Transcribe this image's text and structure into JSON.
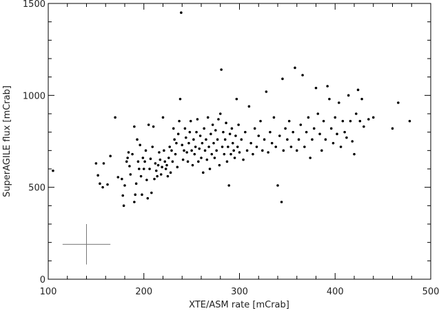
{
  "chart_data": {
    "type": "scatter",
    "title": "",
    "xlabel": "XTE/ASM rate [mCrab]",
    "ylabel": "SuperAGILE flux [mCrab]",
    "xlim": [
      100,
      500
    ],
    "ylim": [
      0,
      1500
    ],
    "xticks": [
      100,
      200,
      300,
      400,
      500
    ],
    "yticks": [
      0,
      500,
      1000,
      1500
    ],
    "grid": false,
    "legend": "none",
    "error_bar_example": {
      "x": 140,
      "y": 190,
      "x_err": 25,
      "y_err": 110
    },
    "series": [
      {
        "points": [
          [
            105,
            590
          ],
          [
            150,
            630
          ],
          [
            152,
            565
          ],
          [
            154,
            520
          ],
          [
            157,
            500
          ],
          [
            158,
            630
          ],
          [
            162,
            515
          ],
          [
            165,
            670
          ],
          [
            170,
            880
          ],
          [
            173,
            555
          ],
          [
            177,
            545
          ],
          [
            178,
            455
          ],
          [
            179,
            400
          ],
          [
            180,
            510
          ],
          [
            182,
            640
          ],
          [
            183,
            660
          ],
          [
            184,
            690
          ],
          [
            185,
            615
          ],
          [
            186,
            570
          ],
          [
            188,
            680
          ],
          [
            190,
            420
          ],
          [
            190,
            830
          ],
          [
            191,
            460
          ],
          [
            192,
            520
          ],
          [
            193,
            760
          ],
          [
            194,
            640
          ],
          [
            195,
            600
          ],
          [
            196,
            730
          ],
          [
            197,
            560
          ],
          [
            198,
            460
          ],
          [
            199,
            660
          ],
          [
            200,
            600
          ],
          [
            201,
            640
          ],
          [
            202,
            700
          ],
          [
            203,
            540
          ],
          [
            204,
            440
          ],
          [
            205,
            840
          ],
          [
            206,
            600
          ],
          [
            207,
            655
          ],
          [
            208,
            470
          ],
          [
            209,
            720
          ],
          [
            210,
            830
          ],
          [
            211,
            545
          ],
          [
            212,
            630
          ],
          [
            213,
            590
          ],
          [
            214,
            560
          ],
          [
            215,
            620
          ],
          [
            216,
            690
          ],
          [
            217,
            650
          ],
          [
            218,
            570
          ],
          [
            219,
            610
          ],
          [
            220,
            880
          ],
          [
            221,
            700
          ],
          [
            222,
            640
          ],
          [
            223,
            600
          ],
          [
            224,
            620
          ],
          [
            225,
            560
          ],
          [
            226,
            660
          ],
          [
            227,
            720
          ],
          [
            228,
            580
          ],
          [
            229,
            700
          ],
          [
            230,
            640
          ],
          [
            231,
            820
          ],
          [
            232,
            760
          ],
          [
            233,
            680
          ],
          [
            234,
            740
          ],
          [
            235,
            610
          ],
          [
            236,
            790
          ],
          [
            237,
            860
          ],
          [
            238,
            980
          ],
          [
            239,
            1450
          ],
          [
            240,
            730
          ],
          [
            241,
            650
          ],
          [
            242,
            700
          ],
          [
            243,
            820
          ],
          [
            244,
            770
          ],
          [
            245,
            690
          ],
          [
            246,
            640
          ],
          [
            247,
            740
          ],
          [
            248,
            800
          ],
          [
            249,
            860
          ],
          [
            250,
            700
          ],
          [
            251,
            620
          ],
          [
            252,
            760
          ],
          [
            253,
            680
          ],
          [
            254,
            720
          ],
          [
            255,
            800
          ],
          [
            256,
            870
          ],
          [
            257,
            640
          ],
          [
            258,
            710
          ],
          [
            259,
            780
          ],
          [
            260,
            660
          ],
          [
            261,
            740
          ],
          [
            262,
            580
          ],
          [
            263,
            820
          ],
          [
            264,
            700
          ],
          [
            265,
            760
          ],
          [
            266,
            650
          ],
          [
            267,
            880
          ],
          [
            268,
            720
          ],
          [
            269,
            600
          ],
          [
            270,
            790
          ],
          [
            271,
            680
          ],
          [
            272,
            840
          ],
          [
            273,
            740
          ],
          [
            274,
            660
          ],
          [
            275,
            810
          ],
          [
            276,
            700
          ],
          [
            277,
            760
          ],
          [
            278,
            870
          ],
          [
            279,
            620
          ],
          [
            280,
            900
          ],
          [
            281,
            1140
          ],
          [
            282,
            720
          ],
          [
            283,
            800
          ],
          [
            284,
            680
          ],
          [
            285,
            760
          ],
          [
            286,
            850
          ],
          [
            287,
            640
          ],
          [
            288,
            720
          ],
          [
            289,
            510
          ],
          [
            290,
            790
          ],
          [
            291,
            680
          ],
          [
            292,
            820
          ],
          [
            293,
            740
          ],
          [
            294,
            700
          ],
          [
            295,
            660
          ],
          [
            296,
            780
          ],
          [
            297,
            980
          ],
          [
            298,
            720
          ],
          [
            299,
            840
          ],
          [
            300,
            690
          ],
          [
            302,
            760
          ],
          [
            304,
            650
          ],
          [
            306,
            800
          ],
          [
            308,
            700
          ],
          [
            310,
            940
          ],
          [
            312,
            740
          ],
          [
            314,
            680
          ],
          [
            316,
            820
          ],
          [
            318,
            720
          ],
          [
            320,
            780
          ],
          [
            322,
            860
          ],
          [
            324,
            700
          ],
          [
            326,
            760
          ],
          [
            328,
            1020
          ],
          [
            330,
            690
          ],
          [
            332,
            800
          ],
          [
            334,
            740
          ],
          [
            336,
            880
          ],
          [
            338,
            720
          ],
          [
            340,
            510
          ],
          [
            342,
            780
          ],
          [
            344,
            420
          ],
          [
            345,
            1090
          ],
          [
            346,
            700
          ],
          [
            348,
            820
          ],
          [
            350,
            760
          ],
          [
            352,
            860
          ],
          [
            354,
            720
          ],
          [
            356,
            800
          ],
          [
            358,
            1150
          ],
          [
            360,
            700
          ],
          [
            362,
            760
          ],
          [
            364,
            840
          ],
          [
            366,
            1110
          ],
          [
            368,
            720
          ],
          [
            370,
            800
          ],
          [
            372,
            880
          ],
          [
            374,
            660
          ],
          [
            376,
            760
          ],
          [
            378,
            820
          ],
          [
            380,
            1040
          ],
          [
            382,
            900
          ],
          [
            384,
            790
          ],
          [
            386,
            700
          ],
          [
            388,
            860
          ],
          [
            390,
            760
          ],
          [
            392,
            1050
          ],
          [
            394,
            980
          ],
          [
            396,
            820
          ],
          [
            398,
            740
          ],
          [
            400,
            880
          ],
          [
            402,
            790
          ],
          [
            404,
            960
          ],
          [
            406,
            720
          ],
          [
            408,
            860
          ],
          [
            410,
            800
          ],
          [
            412,
            770
          ],
          [
            414,
            1000
          ],
          [
            416,
            860
          ],
          [
            418,
            750
          ],
          [
            420,
            680
          ],
          [
            422,
            900
          ],
          [
            424,
            1030
          ],
          [
            426,
            860
          ],
          [
            428,
            980
          ],
          [
            430,
            830
          ],
          [
            435,
            870
          ],
          [
            440,
            880
          ],
          [
            460,
            820
          ],
          [
            466,
            960
          ],
          [
            478,
            860
          ]
        ]
      }
    ]
  }
}
